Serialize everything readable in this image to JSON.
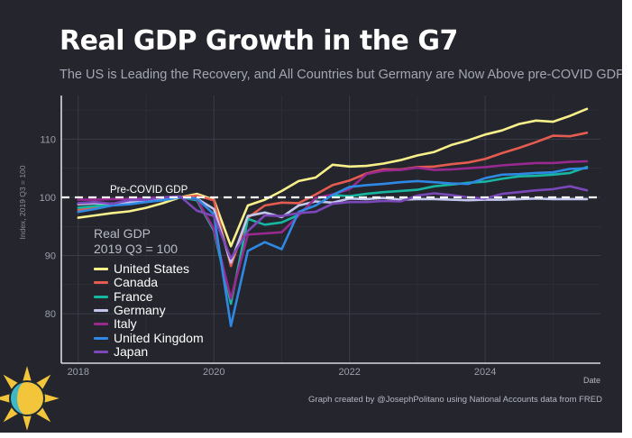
{
  "title": "Real GDP Growth in the G7",
  "subtitle": "The US is Leading the Recovery, and All Countries but Germany are Now Above pre-COVID GDP",
  "credit": "Graph created by @JosephPolitano using National Accounts data from FRED",
  "logo_icon": "sun-icon",
  "colors": {
    "background": "#24252d",
    "grid": "#3b3c48",
    "axis": "#d8d8de",
    "reference": "#ffffff"
  },
  "chart_data": {
    "type": "line",
    "ylabel": "Index, 2019 Q3 = 100",
    "xlabel": "Date",
    "xlim": [
      2017.75,
      2025.7
    ],
    "ylim": [
      71.5,
      117.5
    ],
    "xticks": [
      2018,
      2020,
      2022,
      2024
    ],
    "xtick_labels": [
      "2018",
      "2020",
      "2022",
      "2024"
    ],
    "yticks": [
      80,
      90,
      100,
      110
    ],
    "ytick_labels": [
      "80",
      "90",
      "100",
      "110"
    ],
    "grid": true,
    "reference_line": {
      "value": 100,
      "label": "Pre-COVID GDP",
      "style": "dashed"
    },
    "legend": {
      "title_lines": [
        "Real GDP",
        "2019 Q3 = 100"
      ],
      "placement": "inside-left"
    },
    "x": [
      2018.0,
      2018.25,
      2018.5,
      2018.75,
      2019.0,
      2019.25,
      2019.5,
      2019.75,
      2020.0,
      2020.25,
      2020.5,
      2020.75,
      2021.0,
      2021.25,
      2021.5,
      2021.75,
      2022.0,
      2022.25,
      2022.5,
      2022.75,
      2023.0,
      2023.25,
      2023.5,
      2023.75,
      2024.0,
      2024.25,
      2024.5,
      2024.75,
      2025.0,
      2025.25,
      2025.5
    ],
    "series": [
      {
        "name": "United States",
        "color": "#f8f08a",
        "values": [
          96.5,
          96.9,
          97.3,
          97.6,
          98.2,
          99.0,
          100.0,
          100.6,
          99.6,
          91.6,
          98.6,
          99.6,
          101.1,
          102.8,
          103.4,
          105.6,
          105.3,
          105.4,
          105.8,
          106.4,
          107.2,
          107.8,
          109.0,
          109.8,
          110.8,
          111.5,
          112.6,
          113.2,
          113.0,
          114.0,
          115.2
        ]
      },
      {
        "name": "Canada",
        "color": "#e45b4f",
        "values": [
          97.8,
          98.3,
          98.9,
          99.1,
          99.2,
          99.8,
          100.0,
          100.3,
          99.5,
          88.2,
          96.5,
          98.6,
          99.1,
          99.0,
          100.5,
          102.1,
          102.9,
          104.1,
          104.8,
          104.8,
          105.2,
          105.3,
          105.7,
          106.0,
          106.6,
          107.6,
          108.5,
          109.5,
          110.6,
          110.5,
          111.1
        ]
      },
      {
        "name": "France",
        "color": "#17b6a0",
        "values": [
          98.2,
          98.5,
          98.8,
          99.2,
          99.5,
          99.9,
          100.0,
          99.5,
          94.3,
          81.7,
          96.3,
          95.3,
          95.7,
          97.0,
          99.8,
          100.4,
          100.2,
          100.6,
          100.9,
          101.1,
          101.3,
          101.9,
          102.2,
          102.5,
          102.7,
          103.2,
          103.6,
          103.7,
          103.9,
          104.2,
          105.2
        ]
      },
      {
        "name": "Germany",
        "color": "#c3c6ec",
        "values": [
          98.8,
          99.0,
          98.9,
          99.1,
          99.4,
          99.7,
          100.0,
          99.8,
          98.0,
          88.8,
          96.8,
          97.4,
          96.6,
          98.6,
          99.3,
          99.1,
          99.8,
          99.7,
          99.9,
          99.6,
          99.7,
          99.7,
          99.6,
          99.5,
          99.6,
          99.6,
          99.7,
          99.8,
          99.7,
          99.7,
          99.7
        ]
      },
      {
        "name": "Italy",
        "color": "#98298f",
        "values": [
          99.6,
          99.6,
          99.7,
          99.7,
          99.9,
          100.0,
          100.0,
          99.7,
          94.6,
          82.6,
          93.6,
          93.8,
          94.0,
          96.9,
          99.9,
          100.5,
          101.4,
          104.0,
          104.6,
          104.7,
          105.1,
          104.7,
          104.8,
          105.0,
          105.2,
          105.5,
          105.7,
          105.9,
          105.9,
          106.1,
          106.2
        ]
      },
      {
        "name": "United Kingdom",
        "color": "#2f89e4",
        "values": [
          97.5,
          98.0,
          98.6,
          98.8,
          99.2,
          99.5,
          100.0,
          99.8,
          97.1,
          77.9,
          90.8,
          92.3,
          91.1,
          97.5,
          98.6,
          100.4,
          101.8,
          102.1,
          102.3,
          102.6,
          102.8,
          102.6,
          102.4,
          102.3,
          103.3,
          103.9,
          104.0,
          104.2,
          104.3,
          104.9,
          105.0
        ]
      },
      {
        "name": "Japan",
        "color": "#7a48b8",
        "values": [
          99.0,
          99.2,
          98.9,
          99.5,
          99.6,
          100.0,
          100.2,
          97.7,
          96.8,
          89.5,
          94.2,
          96.9,
          96.8,
          97.3,
          97.5,
          98.9,
          99.2,
          99.2,
          99.4,
          99.3,
          100.3,
          100.7,
          100.4,
          100.0,
          99.8,
          100.6,
          100.9,
          101.2,
          101.4,
          101.9,
          101.2
        ]
      }
    ]
  }
}
